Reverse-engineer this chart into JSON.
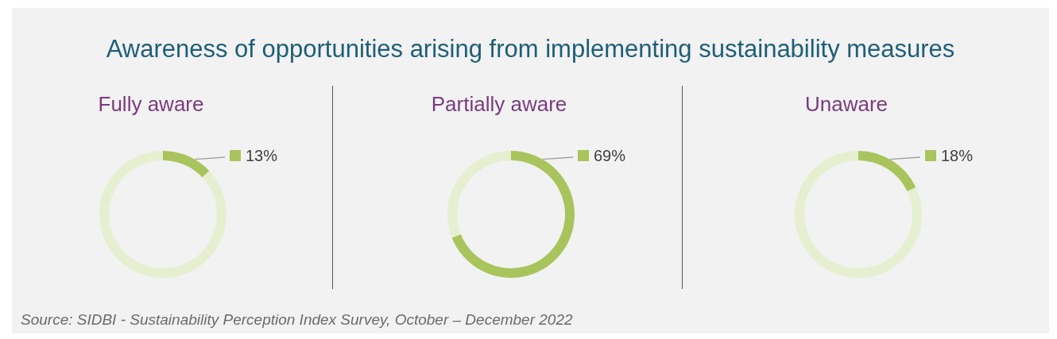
{
  "chart_data": [
    {
      "type": "donut",
      "title": "Awareness of opportunities arising from implementing sustainability measures",
      "subtitle": "Fully aware",
      "categories": [
        null,
        null
      ],
      "values": [
        13,
        87
      ],
      "colors": [
        "#a9c45c",
        "#e6efcf"
      ],
      "value_labels": [
        "13%",
        null
      ],
      "annotations": [
        "Source: SIDBI - Sustainability Perception Index Survey, October – December 2022"
      ]
    },
    {
      "type": "donut",
      "subtitle": "Partially aware",
      "categories": [
        null,
        null
      ],
      "values": [
        69,
        31
      ],
      "colors": [
        "#a9c45c",
        "#e6efcf"
      ],
      "value_labels": [
        "69%",
        null
      ]
    },
    {
      "type": "donut",
      "subtitle": "Unaware",
      "categories": [
        null,
        null
      ],
      "values": [
        18,
        82
      ],
      "colors": [
        "#a9c45c",
        "#e6efcf"
      ],
      "value_labels": [
        "18%",
        null
      ]
    }
  ]
}
